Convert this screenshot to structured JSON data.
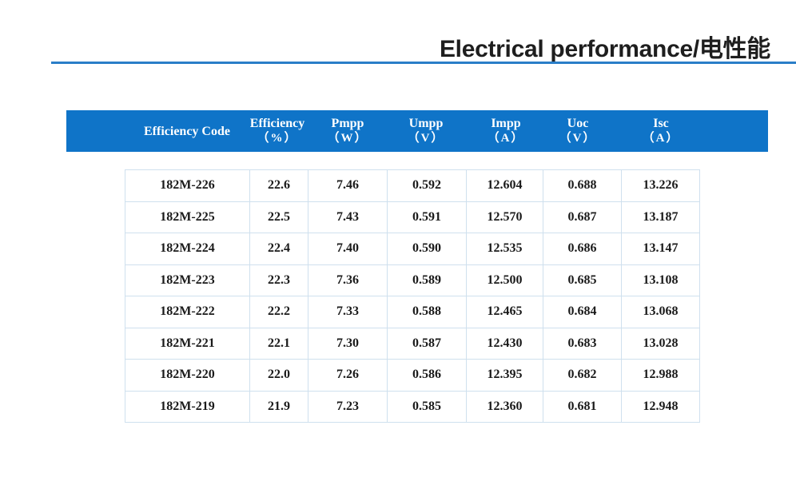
{
  "page": {
    "title": "Electrical performance/电性能"
  },
  "table": {
    "headers": [
      {
        "name": "Efficiency Code",
        "unit": ""
      },
      {
        "name": "Efficiency",
        "unit": "（%）"
      },
      {
        "name": "Pmpp",
        "unit": "（W）"
      },
      {
        "name": "Umpp",
        "unit": "（V）"
      },
      {
        "name": "Impp",
        "unit": "（A）"
      },
      {
        "name": "Uoc",
        "unit": "（V）"
      },
      {
        "name": "Isc",
        "unit": "（A）"
      }
    ],
    "rows": [
      [
        "182M-226",
        "22.6",
        "7.46",
        "0.592",
        "12.604",
        "0.688",
        "13.226"
      ],
      [
        "182M-225",
        "22.5",
        "7.43",
        "0.591",
        "12.570",
        "0.687",
        "13.187"
      ],
      [
        "182M-224",
        "22.4",
        "7.40",
        "0.590",
        "12.535",
        "0.686",
        "13.147"
      ],
      [
        "182M-223",
        "22.3",
        "7.36",
        "0.589",
        "12.500",
        "0.685",
        "13.108"
      ],
      [
        "182M-222",
        "22.2",
        "7.33",
        "0.588",
        "12.465",
        "0.684",
        "13.068"
      ],
      [
        "182M-221",
        "22.1",
        "7.30",
        "0.587",
        "12.430",
        "0.683",
        "13.028"
      ],
      [
        "182M-220",
        "22.0",
        "7.26",
        "0.586",
        "12.395",
        "0.682",
        "12.988"
      ],
      [
        "182M-219",
        "21.9",
        "7.23",
        "0.585",
        "12.360",
        "0.681",
        "12.948"
      ]
    ]
  },
  "colors": {
    "header_band": "#0f74c8",
    "rule": "#2a7ec8",
    "cell_border": "#cfe0ee"
  }
}
